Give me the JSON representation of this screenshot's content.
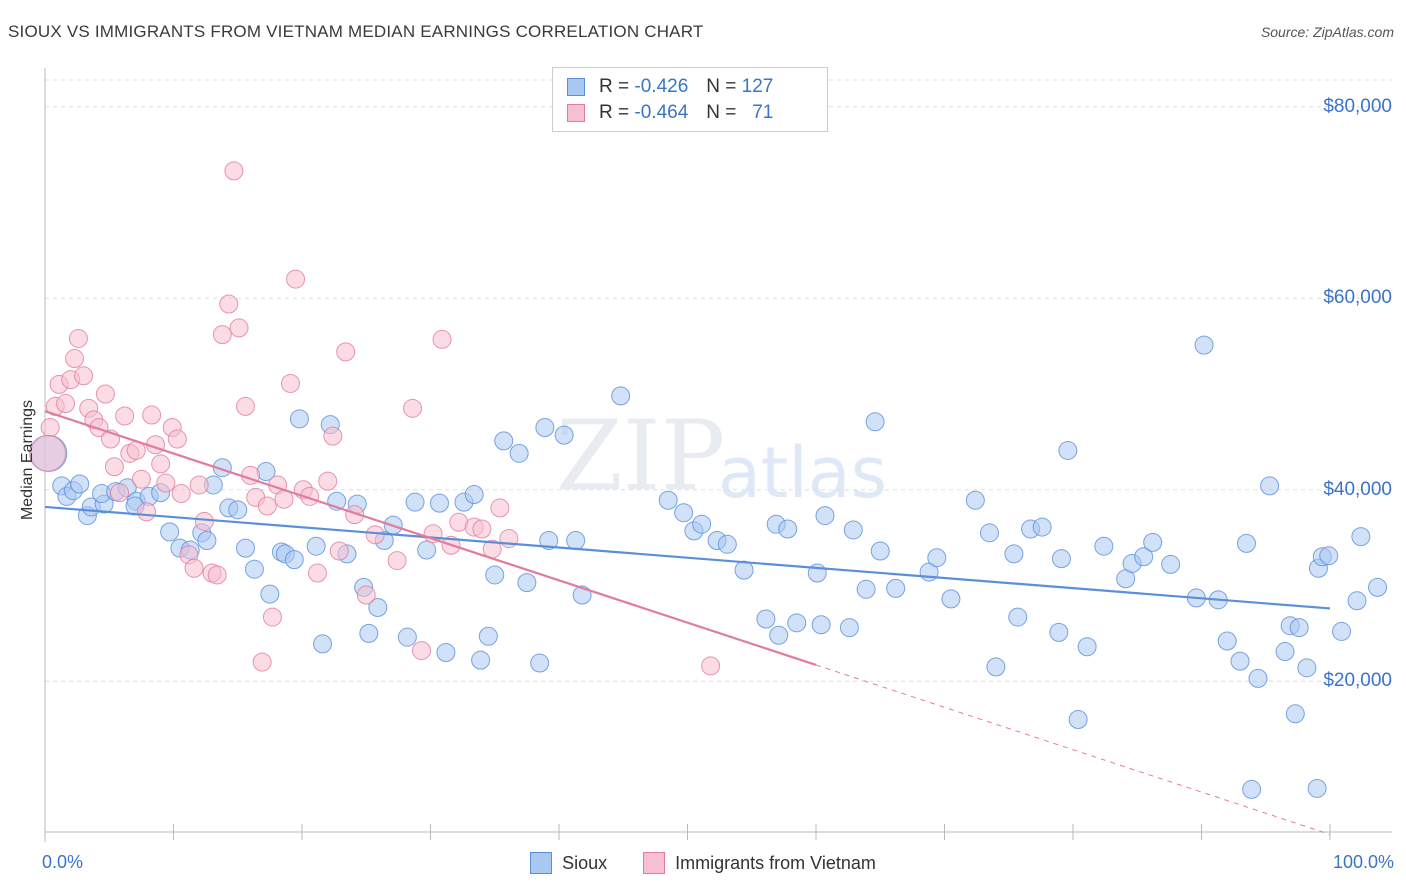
{
  "title": "SIOUX VS IMMIGRANTS FROM VIETNAM MEDIAN EARNINGS CORRELATION CHART",
  "source": "Source: ZipAtlas.com",
  "watermark": {
    "zip": "ZIP",
    "atlas": "atlas"
  },
  "stats": [
    {
      "r_label": "R =",
      "r_value": "-0.426",
      "n_label": "N =",
      "n_value": "127",
      "color": "#a9c8f2",
      "border": "#5b8fd9"
    },
    {
      "r_label": "R =",
      "r_value": "-0.464",
      "n_label": "N =",
      "n_value": "71",
      "color": "#f8bfd0",
      "border": "#e07d9c"
    }
  ],
  "legend": [
    {
      "label": "Sioux",
      "color": "#a9c8f2",
      "border": "#5b8fd9"
    },
    {
      "label": "Immigrants from Vietnam",
      "color": "#f8bfd0",
      "border": "#e07d9c"
    }
  ],
  "chart_data": {
    "type": "scatter",
    "title": "SIOUX VS IMMIGRANTS FROM VIETNAM MEDIAN EARNINGS CORRELATION CHART",
    "ylabel": "Median Earnings",
    "xlabel": "",
    "x_tick_labels": [
      "0.0%",
      "100.0%"
    ],
    "y_tick_labels": [
      "$20,000",
      "$40,000",
      "$60,000",
      "$80,000"
    ],
    "y_ticks": [
      20000,
      40000,
      60000,
      80000
    ],
    "xlim": [
      0,
      100
    ],
    "ylim": [
      3000,
      83000
    ],
    "grid": true,
    "legend_position": "bottom",
    "series": [
      {
        "name": "Sioux",
        "color": "#5b8fd9",
        "fill": "#a9c8f2",
        "trend": {
          "x0": 0,
          "y0": 38200,
          "x1": 100,
          "y1": 27600
        },
        "points": [
          [
            0.3,
            43800
          ],
          [
            1.3,
            40400
          ],
          [
            1.7,
            39300
          ],
          [
            2.2,
            39900
          ],
          [
            2.7,
            40600
          ],
          [
            3.3,
            37300
          ],
          [
            3.6,
            38200
          ],
          [
            4.6,
            38500
          ],
          [
            4.4,
            39600
          ],
          [
            5.5,
            39800
          ],
          [
            6.4,
            40200
          ],
          [
            7.1,
            38800
          ],
          [
            7.0,
            38300
          ],
          [
            8.1,
            39300
          ],
          [
            9.0,
            39700
          ],
          [
            9.7,
            35600
          ],
          [
            10.5,
            33900
          ],
          [
            11.3,
            33700
          ],
          [
            12.2,
            35500
          ],
          [
            12.6,
            34700
          ],
          [
            13.1,
            40500
          ],
          [
            13.8,
            42300
          ],
          [
            14.3,
            38100
          ],
          [
            15.0,
            37900
          ],
          [
            15.6,
            33900
          ],
          [
            16.3,
            31700
          ],
          [
            17.2,
            41900
          ],
          [
            17.5,
            29100
          ],
          [
            18.4,
            33500
          ],
          [
            18.7,
            33300
          ],
          [
            19.4,
            32700
          ],
          [
            19.8,
            47400
          ],
          [
            21.1,
            34100
          ],
          [
            21.6,
            23900
          ],
          [
            22.2,
            46800
          ],
          [
            22.7,
            38800
          ],
          [
            23.5,
            33300
          ],
          [
            24.3,
            38500
          ],
          [
            24.8,
            29800
          ],
          [
            25.2,
            25000
          ],
          [
            25.9,
            27700
          ],
          [
            26.4,
            34700
          ],
          [
            27.1,
            36300
          ],
          [
            28.2,
            24600
          ],
          [
            28.8,
            38700
          ],
          [
            29.7,
            33700
          ],
          [
            30.7,
            38600
          ],
          [
            31.2,
            23000
          ],
          [
            32.6,
            38700
          ],
          [
            33.4,
            39500
          ],
          [
            33.9,
            22200
          ],
          [
            34.5,
            24700
          ],
          [
            35.0,
            31100
          ],
          [
            35.7,
            45100
          ],
          [
            36.9,
            43800
          ],
          [
            37.5,
            30300
          ],
          [
            38.5,
            21900
          ],
          [
            38.9,
            46500
          ],
          [
            39.2,
            34700
          ],
          [
            40.4,
            45700
          ],
          [
            41.3,
            34700
          ],
          [
            41.8,
            29000
          ],
          [
            44.8,
            49800
          ],
          [
            48.5,
            38900
          ],
          [
            49.7,
            37600
          ],
          [
            50.5,
            35700
          ],
          [
            51.1,
            36400
          ],
          [
            52.3,
            34700
          ],
          [
            53.1,
            34300
          ],
          [
            54.4,
            31600
          ],
          [
            56.1,
            26500
          ],
          [
            56.9,
            36400
          ],
          [
            57.1,
            24800
          ],
          [
            57.8,
            35900
          ],
          [
            58.5,
            26100
          ],
          [
            60.1,
            31300
          ],
          [
            60.7,
            37300
          ],
          [
            60.4,
            25900
          ],
          [
            62.6,
            25600
          ],
          [
            62.9,
            35800
          ],
          [
            63.9,
            29600
          ],
          [
            64.6,
            47100
          ],
          [
            65.0,
            33600
          ],
          [
            66.2,
            29700
          ],
          [
            68.8,
            31400
          ],
          [
            69.4,
            32900
          ],
          [
            70.5,
            28600
          ],
          [
            72.4,
            38900
          ],
          [
            73.5,
            35500
          ],
          [
            74.0,
            21500
          ],
          [
            75.4,
            33300
          ],
          [
            75.7,
            26700
          ],
          [
            76.7,
            35900
          ],
          [
            77.6,
            36100
          ],
          [
            78.9,
            25100
          ],
          [
            79.1,
            32800
          ],
          [
            79.6,
            44100
          ],
          [
            80.4,
            16000
          ],
          [
            81.1,
            23600
          ],
          [
            82.4,
            34100
          ],
          [
            84.1,
            30700
          ],
          [
            84.6,
            32300
          ],
          [
            85.5,
            33000
          ],
          [
            86.2,
            34500
          ],
          [
            87.6,
            32200
          ],
          [
            89.6,
            28700
          ],
          [
            90.2,
            55100
          ],
          [
            91.3,
            28500
          ],
          [
            92.0,
            24200
          ],
          [
            93.0,
            22100
          ],
          [
            93.5,
            34400
          ],
          [
            94.4,
            20300
          ],
          [
            95.3,
            40400
          ],
          [
            96.5,
            23100
          ],
          [
            96.9,
            25800
          ],
          [
            97.6,
            25600
          ],
          [
            97.3,
            16600
          ],
          [
            98.2,
            21400
          ],
          [
            99.1,
            31800
          ],
          [
            99.4,
            33000
          ],
          [
            99.9,
            33100
          ],
          [
            100.9,
            25200
          ],
          [
            102.1,
            28400
          ],
          [
            102.4,
            35100
          ],
          [
            103.7,
            29800
          ],
          [
            99.0,
            8800
          ],
          [
            93.9,
            8700
          ]
        ]
      },
      {
        "name": "Immigrants from Vietnam",
        "color": "#e07d9c",
        "fill": "#f8bfd0",
        "trend": {
          "x0": 0,
          "y0": 48200,
          "x1": 60,
          "y1": 21700,
          "x_ext": 100,
          "y_ext": 4000
        },
        "points": [
          [
            0.4,
            46500
          ],
          [
            0.8,
            48700
          ],
          [
            1.1,
            51000
          ],
          [
            1.6,
            49000
          ],
          [
            2.0,
            51500
          ],
          [
            2.3,
            53700
          ],
          [
            2.6,
            55800
          ],
          [
            3.0,
            51900
          ],
          [
            3.4,
            48500
          ],
          [
            3.8,
            47300
          ],
          [
            4.2,
            46500
          ],
          [
            4.7,
            50000
          ],
          [
            5.1,
            45300
          ],
          [
            5.4,
            42400
          ],
          [
            5.8,
            39700
          ],
          [
            6.2,
            47700
          ],
          [
            6.6,
            43800
          ],
          [
            7.1,
            44100
          ],
          [
            7.5,
            41100
          ],
          [
            7.9,
            37700
          ],
          [
            8.3,
            47800
          ],
          [
            8.6,
            44700
          ],
          [
            9.0,
            42700
          ],
          [
            9.4,
            40700
          ],
          [
            9.9,
            46500
          ],
          [
            10.3,
            45300
          ],
          [
            10.6,
            39600
          ],
          [
            11.2,
            33200
          ],
          [
            11.6,
            31800
          ],
          [
            12.0,
            40500
          ],
          [
            12.4,
            36700
          ],
          [
            13.0,
            31300
          ],
          [
            13.4,
            31100
          ],
          [
            13.8,
            56200
          ],
          [
            14.3,
            59400
          ],
          [
            14.7,
            73300
          ],
          [
            15.1,
            56900
          ],
          [
            15.6,
            48700
          ],
          [
            16.0,
            41500
          ],
          [
            16.4,
            39200
          ],
          [
            16.9,
            22000
          ],
          [
            17.3,
            38300
          ],
          [
            17.7,
            26700
          ],
          [
            18.1,
            40500
          ],
          [
            18.6,
            39000
          ],
          [
            19.1,
            51100
          ],
          [
            19.5,
            62000
          ],
          [
            20.1,
            40000
          ],
          [
            20.6,
            39300
          ],
          [
            21.2,
            31300
          ],
          [
            22.0,
            40900
          ],
          [
            22.4,
            45600
          ],
          [
            22.9,
            33600
          ],
          [
            23.4,
            54400
          ],
          [
            24.1,
            37400
          ],
          [
            25.0,
            29000
          ],
          [
            25.7,
            35300
          ],
          [
            27.4,
            32600
          ],
          [
            28.6,
            48500
          ],
          [
            29.3,
            23200
          ],
          [
            30.2,
            35400
          ],
          [
            30.9,
            55700
          ],
          [
            31.6,
            34200
          ],
          [
            32.2,
            36600
          ],
          [
            33.4,
            36100
          ],
          [
            34.0,
            35900
          ],
          [
            34.8,
            33800
          ],
          [
            35.4,
            38100
          ],
          [
            36.1,
            34900
          ],
          [
            51.8,
            21600
          ],
          [
            0.2,
            43800
          ]
        ]
      }
    ]
  }
}
